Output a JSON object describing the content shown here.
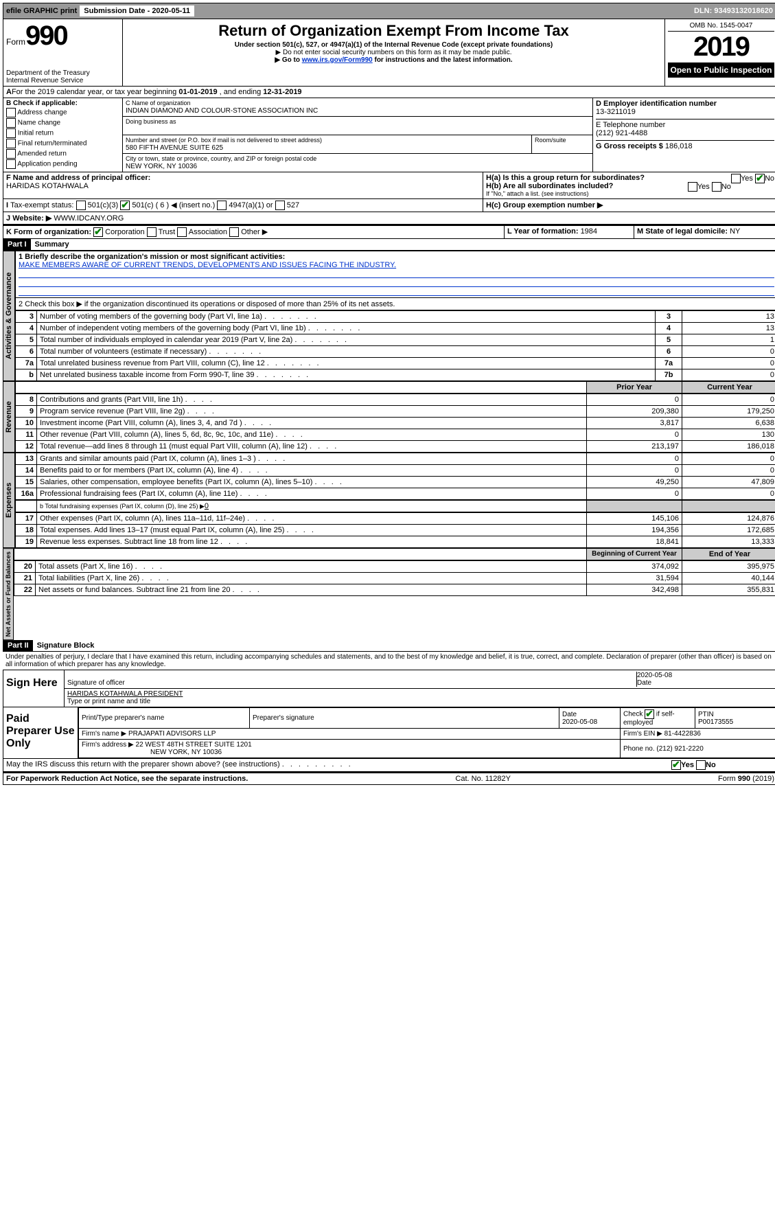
{
  "top": {
    "efile": "efile GRAPHIC print",
    "subm_label": "Submission Date - 2020-05-11",
    "dln": "DLN: 93493132018620"
  },
  "hdr": {
    "form_word": "Form",
    "form_no": "990",
    "dept": "Department of the Treasury\nInternal Revenue Service",
    "title": "Return of Organization Exempt From Income Tax",
    "sub1": "Under section 501(c), 527, or 4947(a)(1) of the Internal Revenue Code (except private foundations)",
    "sub2": "▶ Do not enter social security numbers on this form as it may be made public.",
    "sub3a": "▶ Go to ",
    "sub3_link": "www.irs.gov/Form990",
    "sub3b": " for instructions and the latest information.",
    "omb": "OMB No. 1545-0047",
    "year": "2019",
    "open": "Open to Public Inspection"
  },
  "A": {
    "text_a": "For the 2019 calendar year, or tax year beginning ",
    "begin": "01-01-2019",
    "text_b": " , and ending ",
    "end": "12-31-2019"
  },
  "B": {
    "label": "B Check if applicable:",
    "addr": "Address change",
    "name": "Name change",
    "init": "Initial return",
    "final": "Final return/terminated",
    "amend": "Amended return",
    "app": "Application pending"
  },
  "C": {
    "name_lbl": "C Name of organization",
    "name": "INDIAN DIAMOND AND COLOUR-STONE ASSOCIATION INC",
    "dba_lbl": "Doing business as",
    "dba": "",
    "street_lbl": "Number and street (or P.O. box if mail is not delivered to street address)",
    "suite_lbl": "Room/suite",
    "street": "580 FIFTH AVENUE SUITE 625",
    "city_lbl": "City or town, state or province, country, and ZIP or foreign postal code",
    "city": "NEW YORK, NY  10036"
  },
  "D": {
    "lbl": "D Employer identification number",
    "val": "13-3211019"
  },
  "E": {
    "lbl": "E Telephone number",
    "val": "(212) 921-4488"
  },
  "G": {
    "lbl": "G Gross receipts $ ",
    "val": "186,018"
  },
  "F": {
    "lbl": "F  Name and address of principal officer:",
    "val": "HARIDAS KOTAHWALA"
  },
  "H": {
    "a": "H(a)  Is this a group return for subordinates?",
    "b": "H(b)  Are all subordinates included?",
    "bnote": "If \"No,\" attach a list. (see instructions)",
    "c": "H(c)  Group exemption number ▶",
    "yes": "Yes",
    "no": "No"
  },
  "I": {
    "lbl": "Tax-exempt status:",
    "c3": "501(c)(3)",
    "c": "501(c) ( 6 ) ◀ (insert no.)",
    "a1": "4947(a)(1) or",
    "s527": "527"
  },
  "J": {
    "lbl": "Website: ▶",
    "val": "WWW.IDCANY.ORG"
  },
  "K": {
    "lbl": "K Form of organization:",
    "corp": "Corporation",
    "trust": "Trust",
    "assoc": "Association",
    "other": "Other ▶"
  },
  "L": {
    "lbl": "L Year of formation: ",
    "val": "1984"
  },
  "M": {
    "lbl": "M State of legal domicile: ",
    "val": "NY"
  },
  "part1": {
    "hdr": "Part I",
    "title": "Summary"
  },
  "summary": {
    "l1_lbl": "1  Briefly describe the organization's mission or most significant activities:",
    "l1_val": "MAKE MEMBERS AWARE OF CURRENT TRENDS, DEVELOPMENTS AND ISSUES FACING THE INDUSTRY.",
    "l2": "2  Check this box ▶    if the organization discontinued its operations or disposed of more than 25% of its net assets.",
    "rows_g": [
      {
        "n": "3",
        "t": "Number of voting members of the governing body (Part VI, line 1a)",
        "k": "3",
        "v": "13"
      },
      {
        "n": "4",
        "t": "Number of independent voting members of the governing body (Part VI, line 1b)",
        "k": "4",
        "v": "13"
      },
      {
        "n": "5",
        "t": "Total number of individuals employed in calendar year 2019 (Part V, line 2a)",
        "k": "5",
        "v": "1"
      },
      {
        "n": "6",
        "t": "Total number of volunteers (estimate if necessary)",
        "k": "6",
        "v": "0"
      },
      {
        "n": "7a",
        "t": "Total unrelated business revenue from Part VIII, column (C), line 12",
        "k": "7a",
        "v": "0"
      },
      {
        "n": "b",
        "t": "Net unrelated business taxable income from Form 990-T, line 39",
        "k": "7b",
        "v": "0"
      }
    ],
    "prior": "Prior Year",
    "curr": "Current Year",
    "rows_rev": [
      {
        "n": "8",
        "t": "Contributions and grants (Part VIII, line 1h)",
        "p": "0",
        "c": "0"
      },
      {
        "n": "9",
        "t": "Program service revenue (Part VIII, line 2g)",
        "p": "209,380",
        "c": "179,250"
      },
      {
        "n": "10",
        "t": "Investment income (Part VIII, column (A), lines 3, 4, and 7d )",
        "p": "3,817",
        "c": "6,638"
      },
      {
        "n": "11",
        "t": "Other revenue (Part VIII, column (A), lines 5, 6d, 8c, 9c, 10c, and 11e)",
        "p": "0",
        "c": "130"
      },
      {
        "n": "12",
        "t": "Total revenue—add lines 8 through 11 (must equal Part VIII, column (A), line 12)",
        "p": "213,197",
        "c": "186,018"
      }
    ],
    "rows_exp": [
      {
        "n": "13",
        "t": "Grants and similar amounts paid (Part IX, column (A), lines 1–3 )",
        "p": "0",
        "c": "0"
      },
      {
        "n": "14",
        "t": "Benefits paid to or for members (Part IX, column (A), line 4)",
        "p": "0",
        "c": "0"
      },
      {
        "n": "15",
        "t": "Salaries, other compensation, employee benefits (Part IX, column (A), lines 5–10)",
        "p": "49,250",
        "c": "47,809"
      },
      {
        "n": "16a",
        "t": "Professional fundraising fees (Part IX, column (A), line 11e)",
        "p": "0",
        "c": "0"
      }
    ],
    "l16b": "b  Total fundraising expenses (Part IX, column (D), line 25) ▶",
    "l16b_val": "0",
    "rows_exp2": [
      {
        "n": "17",
        "t": "Other expenses (Part IX, column (A), lines 11a–11d, 11f–24e)",
        "p": "145,106",
        "c": "124,876"
      },
      {
        "n": "18",
        "t": "Total expenses. Add lines 13–17 (must equal Part IX, column (A), line 25)",
        "p": "194,356",
        "c": "172,685"
      },
      {
        "n": "19",
        "t": "Revenue less expenses. Subtract line 18 from line 12",
        "p": "18,841",
        "c": "13,333"
      }
    ],
    "begin": "Beginning of Current Year",
    "end": "End of Year",
    "rows_na": [
      {
        "n": "20",
        "t": "Total assets (Part X, line 16)",
        "p": "374,092",
        "c": "395,975"
      },
      {
        "n": "21",
        "t": "Total liabilities (Part X, line 26)",
        "p": "31,594",
        "c": "40,144"
      },
      {
        "n": "22",
        "t": "Net assets or fund balances. Subtract line 21 from line 20",
        "p": "342,498",
        "c": "355,831"
      }
    ]
  },
  "sides": {
    "gov": "Activities & Governance",
    "rev": "Revenue",
    "exp": "Expenses",
    "na": "Net Assets or Fund Balances"
  },
  "part2": {
    "hdr": "Part II",
    "title": "Signature Block"
  },
  "sig": {
    "perjury": "Under penalties of perjury, I declare that I have examined this return, including accompanying schedules and statements, and to the best of my knowledge and belief, it is true, correct, and complete. Declaration of preparer (other than officer) is based on all information of which preparer has any knowledge.",
    "sign_here": "Sign Here",
    "sig_off": "Signature of officer",
    "date_lbl": "Date",
    "date": "2020-05-08",
    "name": "HARIDAS KOTAHWALA  PRESIDENT",
    "name_lbl": "Type or print name and title"
  },
  "paid": {
    "lbl": "Paid Preparer Use Only",
    "r1c1": "Print/Type preparer's name",
    "r1c2": "Preparer's signature",
    "r1c3": "Date",
    "r1c3v": "2020-05-08",
    "r1c4a": "Check",
    "r1c4b": "if self-employed",
    "r1c5a": "PTIN",
    "r1c5b": "P00173555",
    "r2a": "Firm's name    ▶ ",
    "r2b": "PRAJAPATI ADVISORS LLP",
    "r2c": "Firm's EIN ▶ ",
    "r2d": "81-4422836",
    "r3a": "Firm's address ▶ ",
    "r3b": "22 WEST 48TH STREET SUITE 1201",
    "r3c": "NEW YORK, NY  10036",
    "r3d": "Phone no. ",
    "r3e": "(212) 921-2220"
  },
  "footer": {
    "discuss": "May the IRS discuss this return with the preparer shown above? (see instructions)",
    "yes": "Yes",
    "no": "No",
    "paperwork": "For Paperwork Reduction Act Notice, see the separate instructions.",
    "cat": "Cat. No. 11282Y",
    "form": "Form 990 (2019)"
  }
}
